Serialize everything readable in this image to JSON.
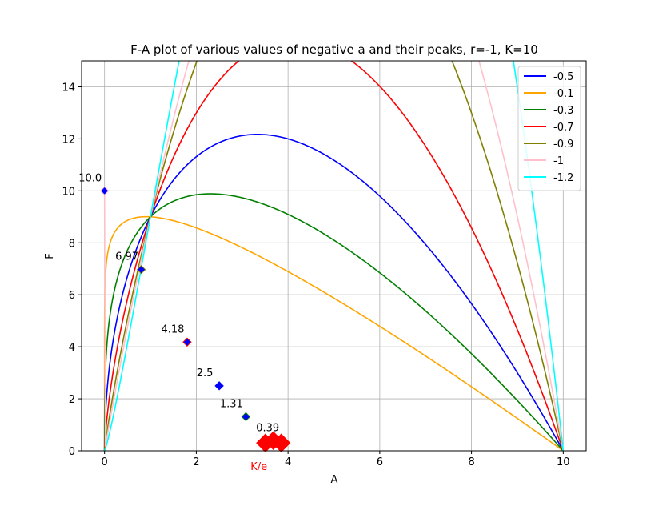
{
  "chart_data": {
    "type": "line",
    "title": "F-A plot of various values of negative a and their peaks, r=-1, K=10",
    "xlabel": "A",
    "ylabel": "F",
    "xlim": [
      -0.5,
      10.5
    ],
    "ylim": [
      0,
      15
    ],
    "xticks": [
      0,
      2,
      4,
      6,
      8,
      10
    ],
    "yticks": [
      0,
      2,
      4,
      6,
      8,
      10,
      12,
      14
    ],
    "grid": true,
    "legend_position": "top-right",
    "r": -1,
    "K": 10,
    "series": [
      {
        "name": "-0.5",
        "a": -0.5,
        "color": "#0000ff",
        "peak": {
          "x": 2.5,
          "y": 2.5,
          "label": "2.5"
        }
      },
      {
        "name": "-0.1",
        "a": -0.1,
        "color": "#ffa500",
        "peak": {
          "x": 3.87,
          "y": 0.39,
          "label": "0.39"
        }
      },
      {
        "name": "-0.3",
        "a": -0.3,
        "color": "#008000",
        "peak": {
          "x": 3.08,
          "y": 1.31,
          "label": "1.31"
        }
      },
      {
        "name": "-0.7",
        "a": -0.7,
        "color": "#ff0000",
        "peak": {
          "x": 1.8,
          "y": 4.18,
          "label": "4.18"
        }
      },
      {
        "name": "-0.9",
        "a": -0.9,
        "color": "#808000",
        "peak": {
          "x": 0.8,
          "y": 6.97,
          "label": "6.97"
        }
      },
      {
        "name": "-1",
        "a": -1,
        "color": "#ffc0cb",
        "peak": {
          "x": 0,
          "y": 10,
          "label": "10.0"
        }
      },
      {
        "name": "-1.2",
        "a": -1.2,
        "color": "#00ffff",
        "peak": null
      }
    ],
    "ke_marker": {
      "label": "K/e",
      "x": 3.6788,
      "color": "#ff0000"
    }
  }
}
